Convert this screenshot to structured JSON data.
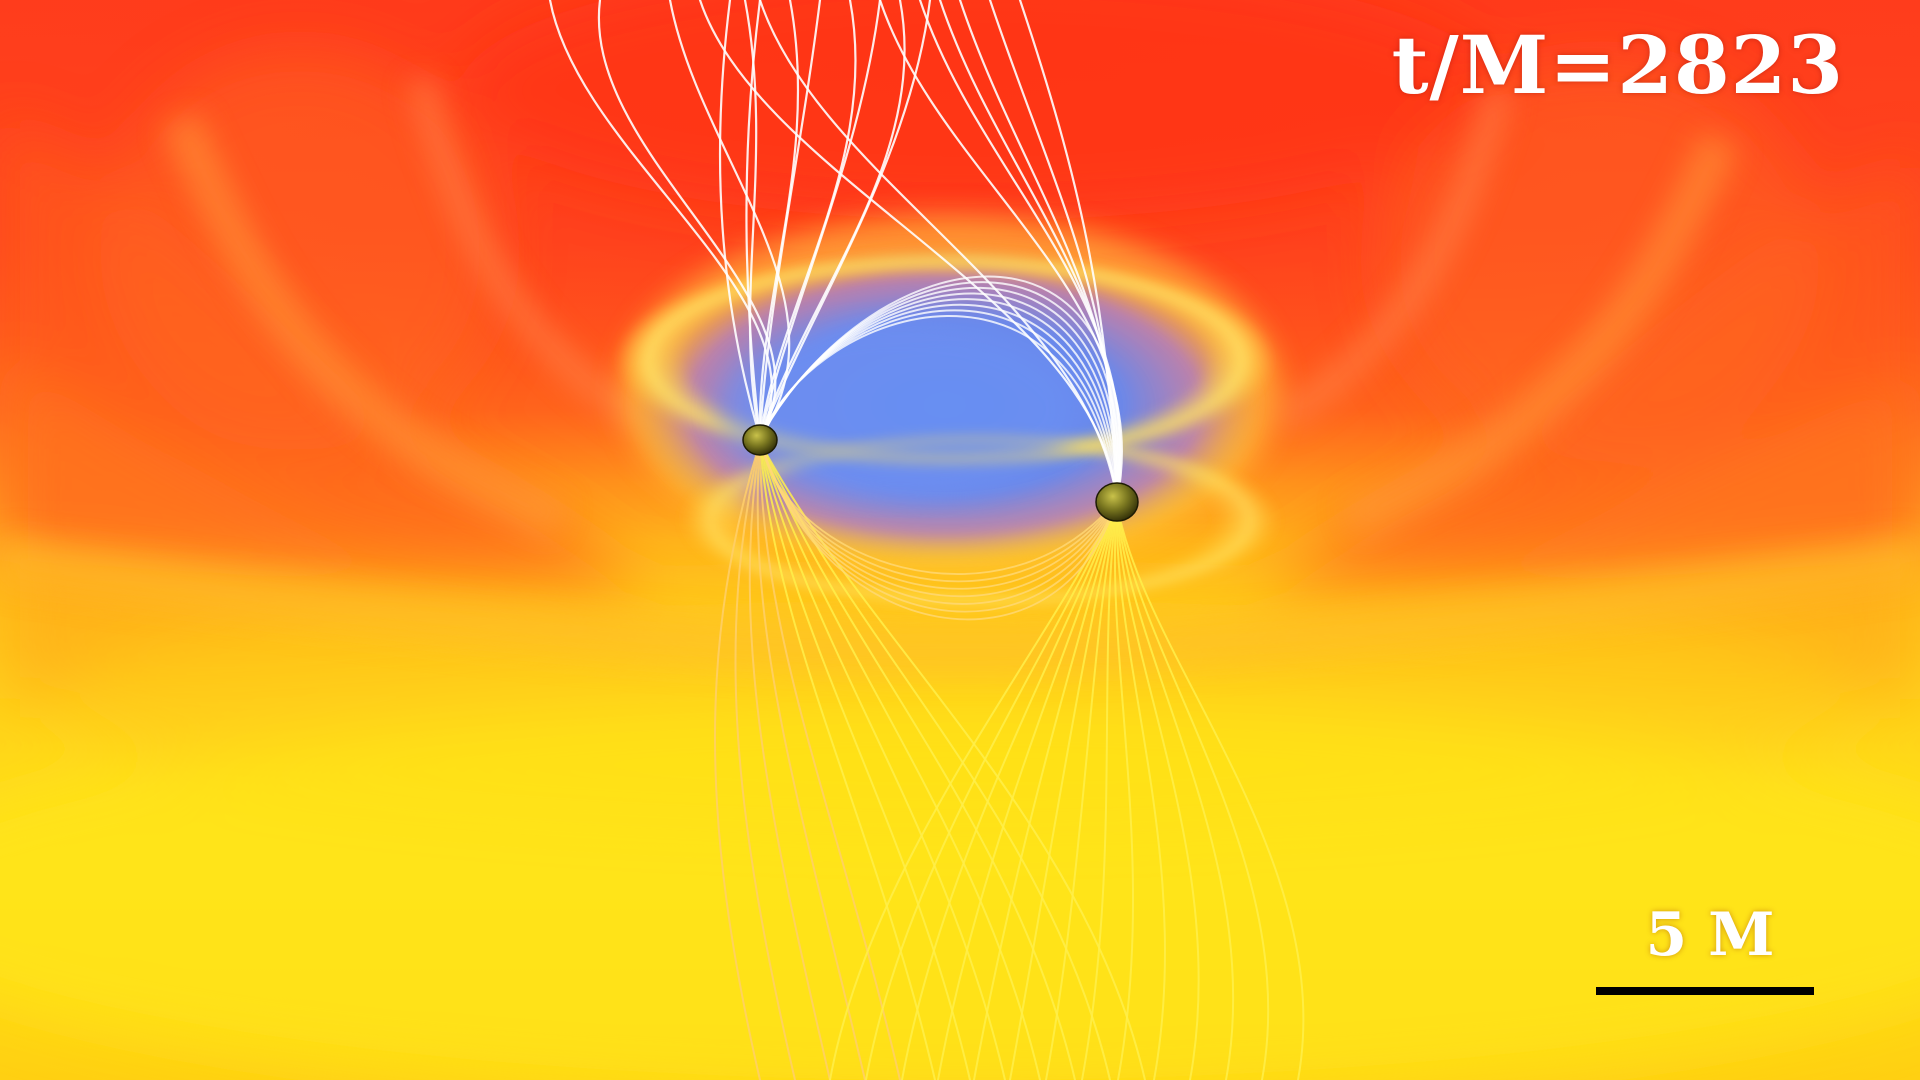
{
  "annotations": {
    "time_label": "t/M=2823",
    "scale_label": "5 M"
  },
  "colors": {
    "background_red": "#ff3a1e",
    "background_orange": "#ff7a1a",
    "background_yellow": "#ffd21a",
    "cavity_blue": "#5a86ee",
    "field_lines_upper": "#ffffff",
    "field_lines_lower": "#ffee4a",
    "black_hole": "#6b6a18"
  },
  "objects": [
    "black-hole-left",
    "black-hole-right",
    "magnetic-field-lines",
    "accretion-disk-cavity"
  ]
}
